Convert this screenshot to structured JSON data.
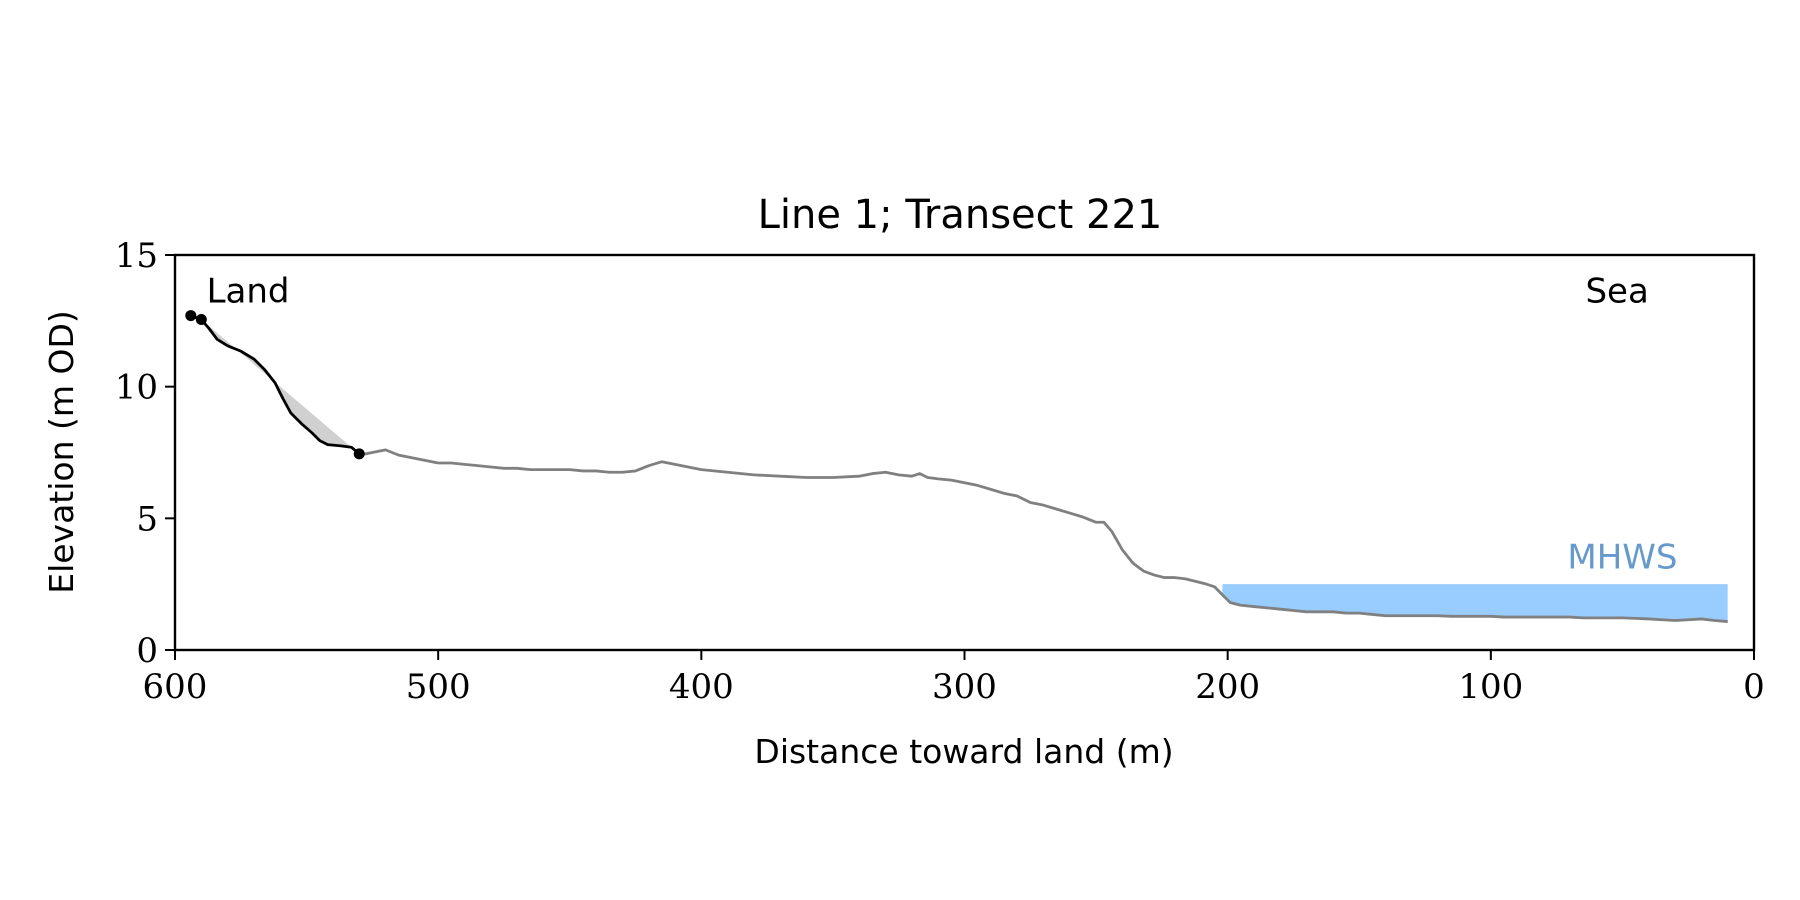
{
  "chart_data": {
    "type": "line",
    "title": "Line 1; Transect 221",
    "xlabel": "Distance toward land (m)",
    "ylabel": "Elevation (m OD)",
    "xlim": [
      600,
      0
    ],
    "ylim": [
      0,
      15
    ],
    "x_reversed": true,
    "x_ticks": [
      600,
      500,
      400,
      300,
      200,
      100,
      0
    ],
    "y_ticks": [
      0,
      5,
      10,
      15
    ],
    "grid": false,
    "annotations": [
      {
        "text": "Land",
        "x": 588,
        "y": 13.2,
        "color": "#000000"
      },
      {
        "text": "Sea",
        "x": 52,
        "y": 13.2,
        "color": "#000000"
      },
      {
        "text": "MHWS",
        "x": 50,
        "y": 3.1,
        "color": "#6699cc"
      }
    ],
    "mhws": {
      "level": 2.5,
      "x_from": 202,
      "x_to": 10,
      "color": "#99ccff"
    },
    "series": [
      {
        "role": "profile",
        "color": "#808080",
        "points": [
          [
            530,
            7.4
          ],
          [
            525,
            7.5
          ],
          [
            520,
            7.6
          ],
          [
            515,
            7.4
          ],
          [
            510,
            7.3
          ],
          [
            505,
            7.2
          ],
          [
            500,
            7.1
          ],
          [
            495,
            7.1
          ],
          [
            490,
            7.05
          ],
          [
            485,
            7.0
          ],
          [
            480,
            6.95
          ],
          [
            475,
            6.9
          ],
          [
            470,
            6.9
          ],
          [
            465,
            6.85
          ],
          [
            460,
            6.85
          ],
          [
            455,
            6.85
          ],
          [
            450,
            6.85
          ],
          [
            445,
            6.8
          ],
          [
            440,
            6.8
          ],
          [
            435,
            6.75
          ],
          [
            430,
            6.75
          ],
          [
            425,
            6.8
          ],
          [
            420,
            7.0
          ],
          [
            415,
            7.15
          ],
          [
            410,
            7.05
          ],
          [
            405,
            6.95
          ],
          [
            400,
            6.85
          ],
          [
            390,
            6.75
          ],
          [
            380,
            6.65
          ],
          [
            370,
            6.6
          ],
          [
            360,
            6.55
          ],
          [
            350,
            6.55
          ],
          [
            340,
            6.6
          ],
          [
            335,
            6.7
          ],
          [
            330,
            6.75
          ],
          [
            325,
            6.65
          ],
          [
            320,
            6.6
          ],
          [
            317,
            6.7
          ],
          [
            314,
            6.55
          ],
          [
            310,
            6.5
          ],
          [
            305,
            6.45
          ],
          [
            300,
            6.35
          ],
          [
            295,
            6.25
          ],
          [
            290,
            6.1
          ],
          [
            285,
            5.95
          ],
          [
            280,
            5.85
          ],
          [
            275,
            5.6
          ],
          [
            270,
            5.5
          ],
          [
            265,
            5.35
          ],
          [
            260,
            5.2
          ],
          [
            255,
            5.05
          ],
          [
            250,
            4.85
          ],
          [
            247,
            4.85
          ],
          [
            244,
            4.5
          ],
          [
            240,
            3.8
          ],
          [
            236,
            3.3
          ],
          [
            232,
            3.0
          ],
          [
            228,
            2.85
          ],
          [
            224,
            2.75
          ],
          [
            220,
            2.75
          ],
          [
            216,
            2.7
          ],
          [
            212,
            2.6
          ],
          [
            208,
            2.5
          ],
          [
            205,
            2.4
          ],
          [
            202,
            2.1
          ],
          [
            199,
            1.8
          ],
          [
            195,
            1.7
          ],
          [
            190,
            1.65
          ],
          [
            185,
            1.6
          ],
          [
            180,
            1.55
          ],
          [
            175,
            1.5
          ],
          [
            170,
            1.45
          ],
          [
            165,
            1.45
          ],
          [
            160,
            1.45
          ],
          [
            155,
            1.4
          ],
          [
            150,
            1.4
          ],
          [
            145,
            1.35
          ],
          [
            140,
            1.3
          ],
          [
            135,
            1.3
          ],
          [
            130,
            1.3
          ],
          [
            125,
            1.3
          ],
          [
            120,
            1.3
          ],
          [
            115,
            1.28
          ],
          [
            110,
            1.28
          ],
          [
            105,
            1.28
          ],
          [
            100,
            1.28
          ],
          [
            95,
            1.25
          ],
          [
            90,
            1.25
          ],
          [
            85,
            1.25
          ],
          [
            80,
            1.25
          ],
          [
            75,
            1.25
          ],
          [
            70,
            1.25
          ],
          [
            65,
            1.22
          ],
          [
            60,
            1.22
          ],
          [
            55,
            1.22
          ],
          [
            50,
            1.22
          ],
          [
            45,
            1.2
          ],
          [
            40,
            1.18
          ],
          [
            35,
            1.15
          ],
          [
            30,
            1.12
          ],
          [
            25,
            1.15
          ],
          [
            20,
            1.18
          ],
          [
            15,
            1.12
          ],
          [
            10,
            1.08
          ]
        ]
      },
      {
        "role": "cliff-profile",
        "color": "#000000",
        "points": [
          [
            594,
            12.7
          ],
          [
            590,
            12.55
          ],
          [
            587,
            12.2
          ],
          [
            584,
            11.8
          ],
          [
            580,
            11.55
          ],
          [
            575,
            11.35
          ],
          [
            570,
            11.05
          ],
          [
            566,
            10.65
          ],
          [
            562,
            10.15
          ],
          [
            559,
            9.55
          ],
          [
            556,
            9.0
          ],
          [
            552,
            8.6
          ],
          [
            548,
            8.25
          ],
          [
            545,
            7.95
          ],
          [
            542,
            7.8
          ],
          [
            537,
            7.75
          ],
          [
            533,
            7.7
          ],
          [
            530,
            7.45
          ]
        ]
      },
      {
        "role": "cliff-chord",
        "color": "#d0d0d0",
        "points": [
          [
            590,
            12.55
          ],
          [
            530,
            7.45
          ]
        ]
      }
    ],
    "markers": [
      [
        594,
        12.7
      ],
      [
        590,
        12.55
      ],
      [
        530,
        7.45
      ]
    ]
  }
}
